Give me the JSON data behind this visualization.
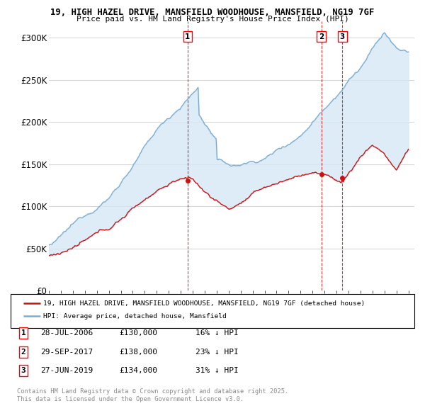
{
  "title_line1": "19, HIGH HAZEL DRIVE, MANSFIELD WOODHOUSE, MANSFIELD, NG19 7GF",
  "title_line2": "Price paid vs. HM Land Registry's House Price Index (HPI)",
  "ylim": [
    0,
    320000
  ],
  "yticks": [
    0,
    50000,
    100000,
    150000,
    200000,
    250000,
    300000
  ],
  "ytick_labels": [
    "£0",
    "£50K",
    "£100K",
    "£150K",
    "£200K",
    "£250K",
    "£300K"
  ],
  "hpi_color": "#7aadd4",
  "hpi_fill_color": "#d6e8f5",
  "property_color": "#cc1111",
  "dashed_color": "#cc1111",
  "legend_property": "19, HIGH HAZEL DRIVE, MANSFIELD WOODHOUSE, MANSFIELD, NG19 7GF (detached house)",
  "legend_hpi": "HPI: Average price, detached house, Mansfield",
  "sale_markers": [
    {
      "num": 1,
      "date_x": 2006.57,
      "price": 130000,
      "label": "28-JUL-2006",
      "amount": "£130,000",
      "pct": "16% ↓ HPI"
    },
    {
      "num": 2,
      "date_x": 2017.74,
      "price": 138000,
      "label": "29-SEP-2017",
      "amount": "£138,000",
      "pct": "23% ↓ HPI"
    },
    {
      "num": 3,
      "date_x": 2019.49,
      "price": 134000,
      "label": "27-JUN-2019",
      "amount": "£134,000",
      "pct": "31% ↓ HPI"
    }
  ],
  "footnote": "Contains HM Land Registry data © Crown copyright and database right 2025.\nThis data is licensed under the Open Government Licence v3.0.",
  "bg_color": "#ffffff",
  "grid_color": "#cccccc",
  "xlim_left": 1995.0,
  "xlim_right": 2025.5
}
